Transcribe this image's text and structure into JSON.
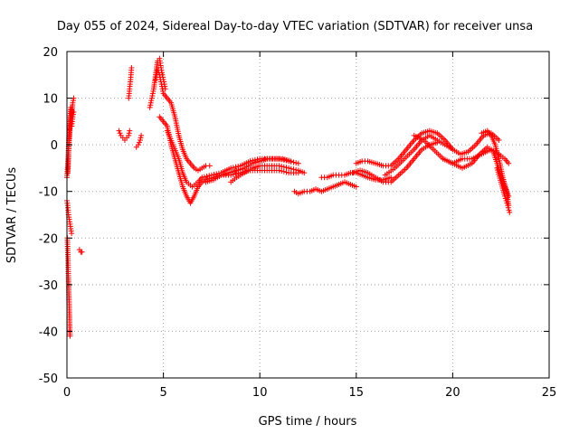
{
  "colors": {
    "series": "#ff0000",
    "axis": "#000000",
    "grid": "#a0a0a0",
    "background": "#ffffff"
  },
  "marker": "plus",
  "chart_data": {
    "type": "scatter",
    "title": "Day 055 of 2024, Sidereal Day-to-day VTEC variation (SDTVAR) for receiver unsa",
    "xlabel": "GPS time / hours",
    "ylabel": "SDTVAR / TECUs",
    "xlim": [
      0,
      25
    ],
    "ylim": [
      -50,
      20
    ],
    "xticks": [
      0,
      5,
      10,
      15,
      20,
      25
    ],
    "yticks": [
      -50,
      -40,
      -30,
      -20,
      -10,
      0,
      10,
      20
    ],
    "grid": true,
    "legend": "none",
    "series": [
      {
        "name": "SDTVAR",
        "tracks": [
          {
            "x": [
              0.0,
              0.05,
              0.1,
              0.15,
              0.2,
              0.25,
              0.3,
              0.35
            ],
            "y": [
              -7,
              -4,
              1,
              5,
              8,
              6,
              9,
              10
            ]
          },
          {
            "x": [
              0.05,
              0.1,
              0.15,
              0.2,
              0.25,
              0.3,
              0.35
            ],
            "y": [
              -6,
              0,
              3,
              6,
              4,
              6,
              7
            ]
          },
          {
            "x": [
              0.0,
              0.04,
              0.08,
              0.12,
              0.16,
              0.2,
              0.24
            ],
            "y": [
              -12,
              -13,
              -15,
              -16,
              -17,
              -18,
              -19
            ]
          },
          {
            "x": [
              0.02,
              0.05,
              0.08,
              0.1,
              0.12,
              0.14,
              0.16
            ],
            "y": [
              -20,
              -24,
              -29,
              -32,
              -35,
              -38,
              -41
            ]
          },
          {
            "x": [
              0.65,
              0.72,
              0.78
            ],
            "y": [
              -22.5,
              -23,
              -23
            ]
          },
          {
            "x": [
              2.7,
              2.8,
              2.9,
              3.0,
              3.1,
              3.2,
              3.25
            ],
            "y": [
              3,
              2,
              1.5,
              1,
              1.5,
              2,
              3
            ]
          },
          {
            "x": [
              3.2,
              3.25,
              3.3,
              3.35
            ],
            "y": [
              10,
              12,
              14,
              16.5
            ]
          },
          {
            "x": [
              3.6,
              3.7,
              3.8,
              3.85
            ],
            "y": [
              -0.5,
              0,
              1,
              2
            ]
          },
          {
            "x": [
              4.3,
              4.4,
              4.5,
              4.6,
              4.7,
              4.8,
              4.9,
              5.0,
              5.1
            ],
            "y": [
              8,
              10,
              12,
              15,
              18,
              18.5,
              16,
              14,
              12
            ]
          },
          {
            "x": [
              4.6,
              4.7,
              4.8,
              4.9,
              5.0,
              5.2,
              5.4,
              5.6,
              5.8,
              6.0,
              6.2,
              6.4,
              6.6,
              6.8,
              7.0,
              7.2,
              7.4
            ],
            "y": [
              14,
              16,
              15,
              13,
              11,
              10,
              9,
              6,
              2,
              -1,
              -3,
              -4,
              -5,
              -5.5,
              -5,
              -4.5,
              -4.5
            ]
          },
          {
            "x": [
              4.8,
              5.0,
              5.2,
              5.4,
              5.6,
              5.8,
              6.0,
              6.2,
              6.4,
              6.6,
              6.8,
              7.0,
              7.2,
              7.6,
              8.0,
              8.5,
              9.0,
              9.5,
              10.0,
              10.5,
              11.0,
              11.5,
              12.0
            ],
            "y": [
              6,
              5,
              4,
              0,
              -3,
              -6,
              -9,
              -11,
              -12.5,
              -11,
              -9,
              -8,
              -7.5,
              -7,
              -6.5,
              -6.5,
              -6,
              -5.5,
              -5.5,
              -5.5,
              -5.5,
              -6,
              -6
            ]
          },
          {
            "x": [
              5.2,
              5.5,
              5.8,
              6.0,
              6.2,
              6.5,
              6.8,
              7.0,
              7.5,
              8.0,
              8.5,
              9.0,
              9.5,
              10.0,
              10.5,
              11.0,
              11.5,
              12.0
            ],
            "y": [
              3,
              0,
              -3,
              -6,
              -8,
              -9,
              -8,
              -7,
              -6.5,
              -6,
              -5,
              -4.5,
              -3.5,
              -3,
              -3,
              -3,
              -3.5,
              -4
            ]
          },
          {
            "x": [
              7.2,
              7.6,
              8.0,
              8.4,
              8.8,
              9.2,
              9.6,
              10.0,
              10.4,
              10.8,
              11.2,
              11.6
            ],
            "y": [
              -8,
              -7.5,
              -6.5,
              -6,
              -5.5,
              -5,
              -4,
              -3.5,
              -3,
              -3,
              -3,
              -3.5
            ]
          },
          {
            "x": [
              8.5,
              8.8,
              9.2,
              9.6,
              10.0,
              10.5,
              11.0,
              11.5,
              12.0,
              12.3
            ],
            "y": [
              -8,
              -7,
              -6,
              -5,
              -4.5,
              -4.5,
              -4.5,
              -5,
              -5.5,
              -6
            ]
          },
          {
            "x": [
              11.8,
              12.0,
              12.3,
              12.6,
              12.9,
              13.2,
              13.5,
              13.8,
              14.1,
              14.4,
              14.7,
              15.0
            ],
            "y": [
              -10,
              -10.5,
              -10,
              -10,
              -9.5,
              -10,
              -9.5,
              -9,
              -8.5,
              -8,
              -8.5,
              -9
            ]
          },
          {
            "x": [
              13.2,
              13.5,
              13.8,
              14.1,
              14.4,
              14.7,
              15.0,
              15.3,
              15.6,
              16.0,
              16.4,
              16.8
            ],
            "y": [
              -7,
              -7,
              -6.5,
              -6.5,
              -6.5,
              -6,
              -6,
              -6.5,
              -7,
              -7.5,
              -7.5,
              -7
            ]
          },
          {
            "x": [
              15.0,
              15.3,
              15.6,
              16.0,
              16.4,
              16.8,
              17.2,
              17.6,
              18.0,
              18.4,
              18.8,
              19.2,
              19.6,
              20.0
            ],
            "y": [
              -4,
              -3.5,
              -3.5,
              -4,
              -4.5,
              -4.5,
              -3,
              -1,
              1,
              2.5,
              3,
              2.5,
              1,
              -1
            ]
          },
          {
            "x": [
              14.8,
              15.2,
              15.6,
              16.0,
              16.4,
              16.8,
              17.2,
              17.6,
              18.0,
              18.4,
              18.8,
              19.2
            ],
            "y": [
              -6,
              -5.5,
              -6,
              -7,
              -8,
              -8,
              -6.5,
              -5,
              -3,
              -1,
              0,
              0.5
            ]
          },
          {
            "x": [
              16.5,
              17.0,
              17.5,
              18.0,
              18.4,
              18.8,
              19.2,
              19.6,
              20.0,
              20.4,
              20.8,
              21.2,
              21.6,
              22.0,
              22.4
            ],
            "y": [
              -6.5,
              -5,
              -3,
              -1,
              1,
              2,
              1,
              0,
              -1,
              -2,
              -1.5,
              0,
              2,
              2.5,
              1
            ]
          },
          {
            "x": [
              18.0,
              18.5,
              19.0,
              19.5,
              20.0,
              20.5,
              21.0,
              21.5,
              22.0,
              22.4,
              22.7,
              22.9
            ],
            "y": [
              2,
              1,
              -1,
              -3,
              -4,
              -3,
              -3,
              -2,
              -1,
              -2,
              -3,
              -4
            ]
          },
          {
            "x": [
              19.5,
              20.0,
              20.5,
              21.0,
              21.4,
              21.8,
              22.1,
              22.3,
              22.5,
              22.7,
              22.9
            ],
            "y": [
              -3,
              -4,
              -5,
              -4,
              -2,
              -0.5,
              -1.5,
              -4,
              -6.5,
              -9,
              -11
            ]
          },
          {
            "x": [
              21.5,
              21.8,
              22.0,
              22.2,
              22.4,
              22.6,
              22.8,
              22.9
            ],
            "y": [
              2.5,
              3,
              2,
              0,
              -3,
              -7,
              -10,
              -13
            ]
          },
          {
            "x": [
              22.3,
              22.5,
              22.7,
              22.85,
              22.95
            ],
            "y": [
              -5,
              -8,
              -11,
              -13,
              -14.5
            ]
          }
        ]
      }
    ]
  }
}
